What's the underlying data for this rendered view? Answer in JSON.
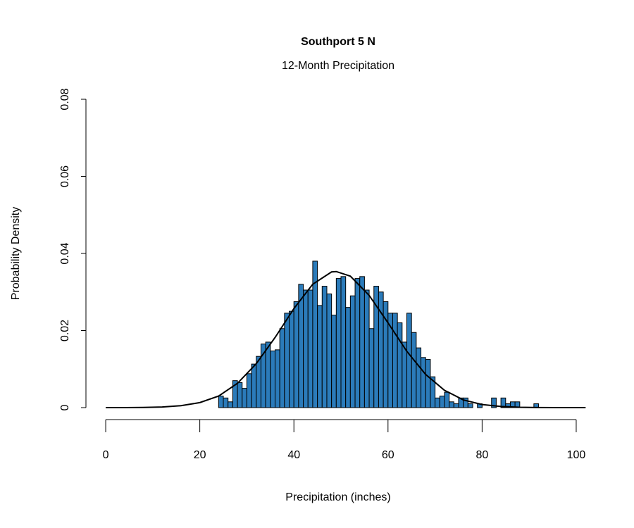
{
  "chart_data": {
    "type": "histogram",
    "title": "Southport 5 N",
    "subtitle": "12-Month Precipitation",
    "xlabel": "Precipitation (inches)",
    "ylabel": "Probability Density",
    "bins": [
      24,
      25,
      26,
      27,
      28,
      29,
      30,
      31,
      32,
      33,
      34,
      35,
      36,
      37,
      38,
      39,
      40,
      41,
      42,
      43,
      44,
      45,
      46,
      47,
      48,
      49,
      50,
      51,
      52,
      53,
      54,
      55,
      56,
      57,
      58,
      59,
      60,
      61,
      62,
      63,
      64,
      65,
      66,
      67,
      68,
      69,
      70,
      71,
      72,
      73,
      74,
      75,
      76,
      77,
      78,
      79,
      80,
      81,
      82,
      83,
      84,
      85,
      86,
      87,
      88,
      89,
      90,
      91,
      92,
      93
    ],
    "values": [
      0.003,
      0.0025,
      0.0015,
      0.007,
      0.0065,
      0.005,
      0.0088,
      0.0113,
      0.0133,
      0.0165,
      0.017,
      0.0147,
      0.015,
      0.0205,
      0.0245,
      0.025,
      0.0275,
      0.032,
      0.0305,
      0.0305,
      0.038,
      0.0265,
      0.0315,
      0.0295,
      0.024,
      0.0335,
      0.034,
      0.026,
      0.029,
      0.0335,
      0.034,
      0.0305,
      0.0205,
      0.0315,
      0.03,
      0.0275,
      0.0245,
      0.0245,
      0.022,
      0.017,
      0.0245,
      0.0195,
      0.0155,
      0.013,
      0.0125,
      0.008,
      0.0025,
      0.003,
      0.004,
      0.0015,
      0.001,
      0.0025,
      0.0025,
      0.001,
      0,
      0.001,
      0,
      0,
      0.0025,
      0,
      0.0025,
      0.001,
      0.0015,
      0.0015,
      0,
      0,
      0,
      0.001,
      0
    ],
    "color": "#2b7bba",
    "density": {
      "color": "#000000",
      "x": [
        0,
        4,
        8,
        12,
        16,
        20,
        24,
        28,
        32,
        36,
        40,
        44,
        48,
        49,
        52,
        56,
        60,
        64,
        68,
        72,
        76,
        80,
        84,
        88,
        92,
        96,
        100,
        102
      ],
      "y": [
        0,
        1e-05,
        5e-05,
        0.00017,
        0.0005,
        0.0013,
        0.003,
        0.0063,
        0.0114,
        0.0182,
        0.0257,
        0.032,
        0.0352,
        0.0353,
        0.0341,
        0.0291,
        0.022,
        0.0146,
        0.0086,
        0.0045,
        0.002,
        0.0008,
        0.0003,
        0.0001,
        3e-05,
        1e-05,
        0,
        0
      ]
    },
    "xlim": [
      -4.2,
      103
    ],
    "ylim": [
      0,
      0.08
    ],
    "xticks": [
      0,
      20,
      40,
      60,
      80,
      100
    ],
    "yticks": [
      {
        "value": 0,
        "label": "0"
      },
      0.02,
      0.04,
      0.06,
      0.08
    ]
  }
}
